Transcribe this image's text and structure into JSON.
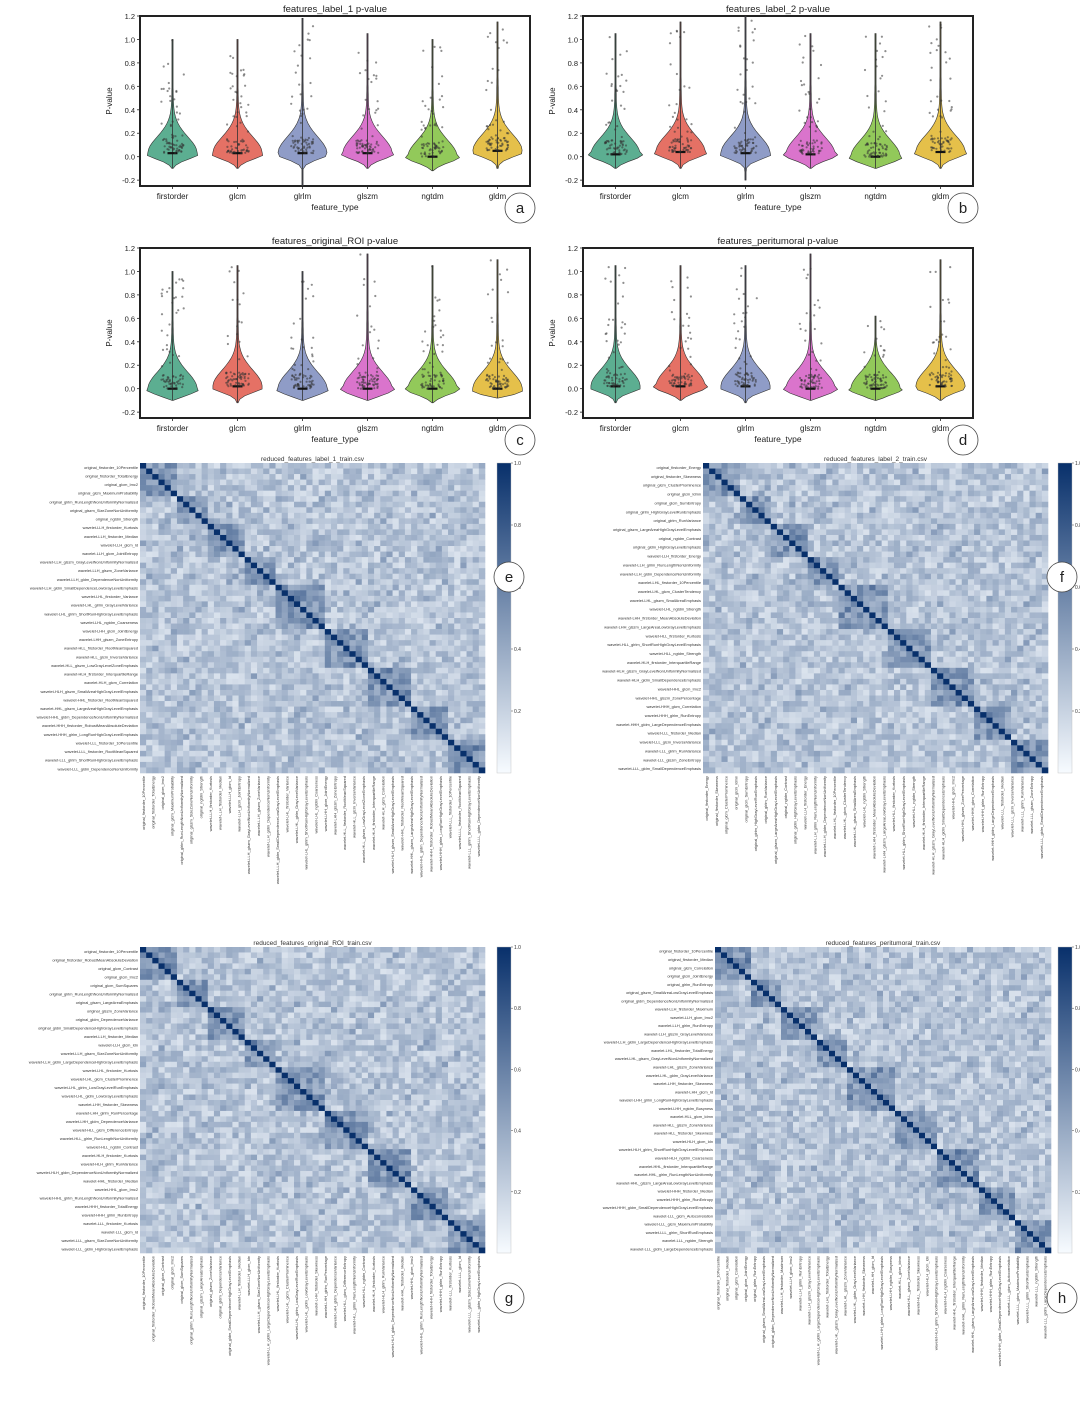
{
  "panel_letters": [
    "a",
    "b",
    "c",
    "d",
    "e",
    "f",
    "g",
    "h"
  ],
  "violin_common": {
    "categories": [
      "firstorder",
      "glcm",
      "glrlm",
      "glszm",
      "ngtdm",
      "gldm"
    ],
    "colors": [
      "#3fa07e",
      "#e0584a",
      "#7b8bbd",
      "#d35cc3",
      "#7fbf3d",
      "#e1b52a"
    ],
    "ylabel": "P-value",
    "xlabel": "feature_type",
    "ylim": [
      -0.25,
      1.2
    ],
    "yticks": [
      "-0.2",
      "0.0",
      "0.2",
      "0.4",
      "0.6",
      "0.8",
      "1.0",
      "1.2"
    ]
  },
  "chart_data": [
    {
      "type": "violin",
      "title": "features_label_1 p-value",
      "xlabel": "feature_type",
      "ylabel": "P-value",
      "categories": [
        "firstorder",
        "glcm",
        "glrlm",
        "glszm",
        "ngtdm",
        "gldm"
      ],
      "series": [
        {
          "name": "firstorder",
          "min": -0.1,
          "max": 1.0,
          "median": 0.03
        },
        {
          "name": "glcm",
          "min": -0.1,
          "max": 1.0,
          "median": 0.03
        },
        {
          "name": "glrlm",
          "min": -0.25,
          "max": 1.18,
          "median": 0.03
        },
        {
          "name": "glszm",
          "min": -0.1,
          "max": 1.05,
          "median": 0.03
        },
        {
          "name": "ngtdm",
          "min": -0.12,
          "max": 1.0,
          "median": 0.0
        },
        {
          "name": "gldm",
          "min": -0.1,
          "max": 1.15,
          "median": 0.05
        }
      ]
    },
    {
      "type": "violin",
      "title": "features_label_2 p-value",
      "xlabel": "feature_type",
      "ylabel": "P-value",
      "categories": [
        "firstorder",
        "glcm",
        "glrlm",
        "glszm",
        "ngtdm",
        "gldm"
      ],
      "series": [
        {
          "name": "firstorder",
          "min": -0.1,
          "max": 1.05,
          "median": 0.02
        },
        {
          "name": "glcm",
          "min": -0.1,
          "max": 1.15,
          "median": 0.04
        },
        {
          "name": "glrlm",
          "min": -0.2,
          "max": 1.2,
          "median": 0.03
        },
        {
          "name": "glszm",
          "min": -0.1,
          "max": 1.05,
          "median": 0.02
        },
        {
          "name": "ngtdm",
          "min": -0.1,
          "max": 1.05,
          "median": 0.0
        },
        {
          "name": "gldm",
          "min": -0.1,
          "max": 1.15,
          "median": 0.04
        }
      ]
    },
    {
      "type": "violin",
      "title": "features_original_ROI p-value",
      "xlabel": "feature_type",
      "ylabel": "P-value",
      "categories": [
        "firstorder",
        "glcm",
        "glrlm",
        "glszm",
        "ngtdm",
        "gldm"
      ],
      "series": [
        {
          "name": "firstorder",
          "min": -0.1,
          "max": 1.0,
          "median": 0.0
        },
        {
          "name": "glcm",
          "min": -0.12,
          "max": 1.05,
          "median": 0.02
        },
        {
          "name": "glrlm",
          "min": -0.1,
          "max": 1.0,
          "median": 0.0
        },
        {
          "name": "glszm",
          "min": -0.1,
          "max": 1.15,
          "median": 0.0
        },
        {
          "name": "ngtdm",
          "min": -0.12,
          "max": 1.05,
          "median": 0.0
        },
        {
          "name": "gldm",
          "min": -0.08,
          "max": 1.1,
          "median": 0.0
        }
      ]
    },
    {
      "type": "violin",
      "title": "features_peritumoral p-value",
      "xlabel": "feature_type",
      "ylabel": "P-value",
      "categories": [
        "firstorder",
        "glcm",
        "glrlm",
        "glszm",
        "ngtdm",
        "gldm"
      ],
      "series": [
        {
          "name": "firstorder",
          "min": -0.12,
          "max": 1.05,
          "median": 0.02
        },
        {
          "name": "glcm",
          "min": -0.1,
          "max": 1.05,
          "median": 0.02
        },
        {
          "name": "glrlm",
          "min": -0.12,
          "max": 1.05,
          "median": 0.02
        },
        {
          "name": "glszm",
          "min": -0.1,
          "max": 1.15,
          "median": 0.0
        },
        {
          "name": "ngtdm",
          "min": -0.1,
          "max": 0.62,
          "median": 0.0
        },
        {
          "name": "gldm",
          "min": -0.1,
          "max": 1.1,
          "median": 0.02
        }
      ]
    },
    {
      "type": "heatmap",
      "title": "reduced_features_label_1_train.csv",
      "colorbar_ticks": [
        "0.2",
        "0.4",
        "0.6",
        "0.8",
        "1.0"
      ],
      "colorbar_range": [
        0,
        1
      ],
      "row_labels": [
        "original_firstorder_10Percentile",
        "original_firstorder_TotalEnergy",
        "original_glcm_Imc2",
        "original_glcm_MaximumProbability",
        "original_glrlm_RunLengthNonUniformityNormalized",
        "original_glszm_SizeZoneNonUniformity",
        "original_ngtdm_Strength",
        "wavelet-LLH_firstorder_Kurtosis",
        "wavelet-LLH_firstorder_Median",
        "wavelet-LLH_glcm_Id",
        "wavelet-LLH_glcm_JointEntropy",
        "wavelet-LLH_glszm_GrayLevelNonUniformityNormalized",
        "wavelet-LLH_glszm_ZoneVariance",
        "wavelet-LLH_gldm_DependenceNonUniformity",
        "wavelet-LLH_gldm_SmallDependenceLowGrayLevelEmphasis",
        "wavelet-LHL_firstorder_Variance",
        "wavelet-LHL_glrlm_GrayLevelVariance",
        "wavelet-LHL_glrlm_ShortRunHighGrayLevelEmphasis",
        "wavelet-LHL_ngtdm_Coarseness",
        "wavelet-LHH_glcm_JointEnergy",
        "wavelet-LHH_glszm_ZoneEntropy",
        "wavelet-HLL_firstorder_RootMeanSquared",
        "wavelet-HLL_glcm_InverseVariance",
        "wavelet-HLL_glszm_LowGrayLevelZoneEmphasis",
        "wavelet-HLH_firstorder_InterquartileRange",
        "wavelet-HLH_glcm_Correlation",
        "wavelet-HLH_glszm_SmallAreaHighGrayLevelEmphasis",
        "wavelet-HHL_firstorder_RootMeanSquared",
        "wavelet-HHL_glszm_LargeAreaHighGrayLevelEmphasis",
        "wavelet-HHL_gldm_DependenceNonUniformityNormalized",
        "wavelet-HHH_firstorder_RobustMeanAbsoluteDeviation",
        "wavelet-HHH_glrlm_LongRunHighGrayLevelEmphasis",
        "wavelet-LLL_firstorder_10Percentile",
        "wavelet-LLL_firstorder_RootMeanSquared",
        "wavelet-LLL_glrlm_ShortRunHighGrayLevelEmphasis",
        "wavelet-LLL_gldm_DependenceNonUniformity"
      ]
    },
    {
      "type": "heatmap",
      "title": "reduced_features_label_2_train.csv",
      "colorbar_ticks": [
        "0.2",
        "0.4",
        "0.6",
        "0.8",
        "1.0"
      ],
      "colorbar_range": [
        0,
        1
      ],
      "row_labels": [
        "original_firstorder_Energy",
        "original_firstorder_Skewness",
        "original_glcm_ClusterProminence",
        "original_glcm_Idmn",
        "original_glcm_SumEntropy",
        "original_glrlm_HighGrayLevelRunEmphasis",
        "original_glrlm_RunVariance",
        "original_glszm_LargeAreaHighGrayLevelEmphasis",
        "original_ngtdm_Contrast",
        "original_gldm_HighGrayLevelEmphasis",
        "wavelet-LLH_firstorder_Energy",
        "wavelet-LLH_glrlm_RunLengthNonUniformity",
        "wavelet-LLH_gldm_DependenceNonUniformity",
        "wavelet-LHL_firstorder_10Percentile",
        "wavelet-LHL_glcm_ClusterTendency",
        "wavelet-LHL_glszm_SmallAreaEmphasis",
        "wavelet-LHL_ngtdm_Strength",
        "wavelet-LHH_firstorder_MeanAbsoluteDeviation",
        "wavelet-LHH_glszm_LargeAreaLowGrayLevelEmphasis",
        "wavelet-HLL_firstorder_Kurtosis",
        "wavelet-HLL_glrlm_ShortRunHighGrayLevelEmphasis",
        "wavelet-HLL_ngtdm_Strength",
        "wavelet-HLH_firstorder_InterquartileRange",
        "wavelet-HLH_glszm_GrayLevelNonUniformityNormalized",
        "wavelet-HLH_gldm_SmallDependenceEmphasis",
        "wavelet-HHL_glcm_Imc2",
        "wavelet-HHL_glszm_ZonePercentage",
        "wavelet-HHH_glcm_Correlation",
        "wavelet-HHH_glrlm_RunEntropy",
        "wavelet-HHH_gldm_LargeDependenceEmphasis",
        "wavelet-LLL_firstorder_Median",
        "wavelet-LLL_glcm_InverseVariance",
        "wavelet-LLL_glrlm_RunVariance",
        "wavelet-LLL_glszm_ZoneEntropy",
        "wavelet-LLL_gldm_SmallDependenceEmphasis"
      ]
    },
    {
      "type": "heatmap",
      "title": "reduced_features_original_ROI_train.csv",
      "colorbar_ticks": [
        "0.2",
        "0.4",
        "0.6",
        "0.8",
        "1.0"
      ],
      "colorbar_range": [
        0,
        1
      ],
      "row_labels": [
        "original_firstorder_10Percentile",
        "original_firstorder_RobustMeanAbsoluteDeviation",
        "original_glcm_Contrast",
        "original_glcm_Imc2",
        "original_glcm_SumSquares",
        "original_glrlm_RunLengthNonUniformityNormalized",
        "original_glszm_LargeAreaEmphasis",
        "original_glszm_ZoneVariance",
        "original_gldm_DependenceVariance",
        "original_gldm_SmallDependenceHighGrayLevelEmphasis",
        "wavelet-LLH_firstorder_Median",
        "wavelet-LLH_glcm_Idn",
        "wavelet-LLH_glszm_SizeZoneNonUniformity",
        "wavelet-LLH_gldm_LargeDependenceHighGrayLevelEmphasis",
        "wavelet-LHL_firstorder_Kurtosis",
        "wavelet-LHL_glcm_ClusterProminence",
        "wavelet-LHL_glrlm_LowGrayLevelRunEmphasis",
        "wavelet-LHL_gldm_LowGrayLevelEmphasis",
        "wavelet-LHH_firstorder_Skewness",
        "wavelet-LHH_glrlm_RunPercentage",
        "wavelet-LHH_gldm_DependenceVariance",
        "wavelet-HLL_glcm_DifferenceEntropy",
        "wavelet-HLL_glrlm_RunLengthNonUniformity",
        "wavelet-HLL_ngtdm_Contrast",
        "wavelet-HLH_firstorder_Kurtosis",
        "wavelet-HLH_glrlm_RunVariance",
        "wavelet-HLH_gldm_DependenceNonUniformityNormalized",
        "wavelet-HHL_firstorder_Median",
        "wavelet-HHL_glcm_Imc2",
        "wavelet-HHL_glrlm_RunLengthNonUniformityNormalized",
        "wavelet-HHH_firstorder_TotalEnergy",
        "wavelet-HHH_glrlm_RunEntropy",
        "wavelet-LLL_firstorder_Kurtosis",
        "wavelet-LLL_glcm_Id",
        "wavelet-LLL_glszm_SizeZoneNonUniformity",
        "wavelet-LLL_gldm_HighGrayLevelEmphasis"
      ]
    },
    {
      "type": "heatmap",
      "title": "reduced_features_peritumoral_train.csv",
      "colorbar_ticks": [
        "0.2",
        "0.4",
        "0.6",
        "0.8",
        "1.0"
      ],
      "colorbar_range": [
        0,
        1
      ],
      "row_labels": [
        "original_firstorder_10Percentile",
        "original_firstorder_Median",
        "original_glcm_Correlation",
        "original_glcm_JointEnergy",
        "original_glrlm_RunEntropy",
        "original_glszm_SmallAreaLowGrayLevelEmphasis",
        "original_gldm_DependenceNonUniformityNormalized",
        "wavelet-LLH_firstorder_Maximum",
        "wavelet-LLH_glcm_Imc2",
        "wavelet-LLH_glrlm_RunEntropy",
        "wavelet-LLH_glszm_GrayLevelVariance",
        "wavelet-LLH_gldm_LargeDependenceHighGrayLevelEmphasis",
        "wavelet-LHL_firstorder_TotalEnergy",
        "wavelet-LHL_glszm_GrayLevelNonUniformityNormalized",
        "wavelet-LHL_glszm_ZoneVariance",
        "wavelet-LHL_gldm_GrayLevelVariance",
        "wavelet-LHH_firstorder_Skewness",
        "wavelet-LHH_glcm_Id",
        "wavelet-LHH_glrlm_LongRunHighGrayLevelEmphasis",
        "wavelet-LHH_ngtdm_Busyness",
        "wavelet-HLL_glcm_Idmn",
        "wavelet-HLL_glszm_ZoneVariance",
        "wavelet-HLL_firstorder_Skewness",
        "wavelet-HLH_glcm_Idn",
        "wavelet-HLH_glrlm_ShortRunHighGrayLevelEmphasis",
        "wavelet-HLH_ngtdm_Coarseness",
        "wavelet-HHL_firstorder_InterquartileRange",
        "wavelet-HHL_glrlm_RunLengthNonUniformity",
        "wavelet-HHL_glszm_LargeAreaLowGrayLevelEmphasis",
        "wavelet-HHH_firstorder_Median",
        "wavelet-HHH_glrlm_RunEntropy",
        "wavelet-HHH_gldm_SmallDependenceHighGrayLevelEmphasis",
        "wavelet-LLL_glcm_Autocorrelation",
        "wavelet-LLL_glcm_MaximumProbability",
        "wavelet-LLL_glrlm_ShortRunEmphasis",
        "wavelet-LLL_ngtdm_Strength",
        "wavelet-LLL_gldm_LargeDependenceEmphasis"
      ]
    }
  ]
}
